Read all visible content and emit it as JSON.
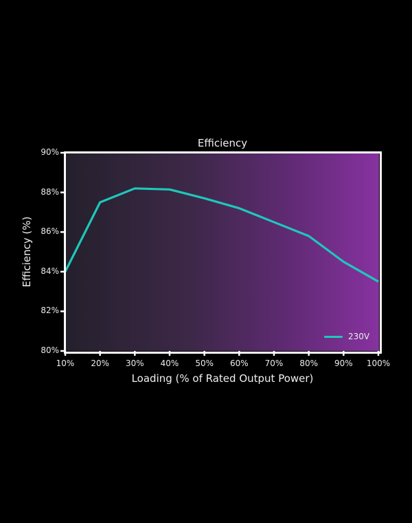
{
  "chart_data": {
    "type": "line",
    "title": "Efficiency",
    "xlabel": "Loading (% of Rated Output Power)",
    "ylabel": "Efficiency (%)",
    "categories": [
      "10%",
      "20%",
      "30%",
      "40%",
      "50%",
      "60%",
      "70%",
      "80%",
      "90%",
      "100%"
    ],
    "x": [
      10,
      20,
      30,
      40,
      50,
      60,
      70,
      80,
      90,
      100
    ],
    "series": [
      {
        "name": "230V",
        "color": "#1ec8ba",
        "values": [
          84.0,
          87.5,
          88.2,
          88.15,
          87.7,
          87.2,
          86.5,
          85.8,
          84.5,
          83.5
        ]
      }
    ],
    "ylim": [
      80,
      90
    ],
    "xlim": [
      10,
      100
    ],
    "yticks": [
      "80%",
      "82%",
      "84%",
      "86%",
      "88%",
      "90%"
    ],
    "ytick_values": [
      80,
      82,
      84,
      86,
      88,
      90
    ],
    "grid": false,
    "legend_position": "lower right",
    "background_gradient": [
      "#24202c",
      "#8732a0"
    ]
  }
}
